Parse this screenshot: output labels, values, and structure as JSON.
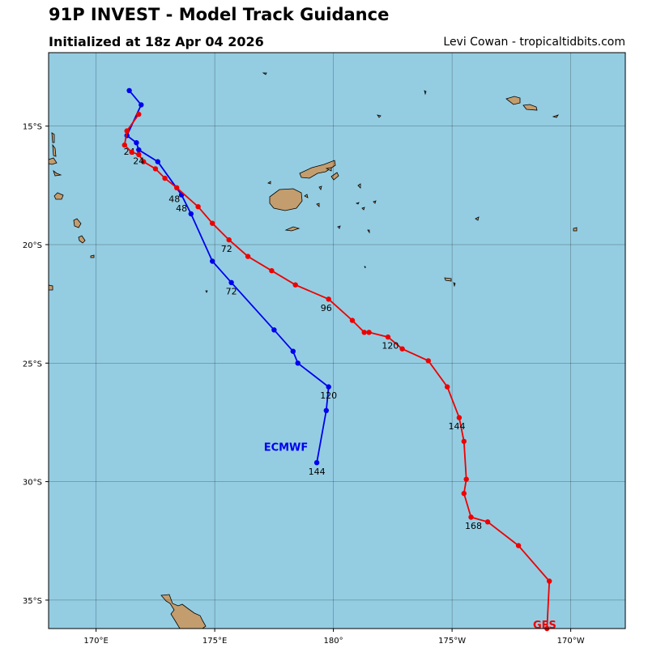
{
  "header": {
    "title": "91P INVEST - Model Track Guidance",
    "subtitle": "Initialized at 18z Apr 04 2026",
    "credit": "Levi Cowan - tropicaltidbits.com"
  },
  "map": {
    "ocean_color": "#94cde2",
    "land_color": "#c49d6e",
    "lon_range": [
      168.0,
      192.3
    ],
    "lat_range": [
      -36.2,
      -11.9
    ],
    "lon_ticks": [
      {
        "value": 170,
        "label": "170°E"
      },
      {
        "value": 175,
        "label": "175°E"
      },
      {
        "value": 180,
        "label": "180°"
      },
      {
        "value": 185,
        "label": "175°W"
      },
      {
        "value": 190,
        "label": "170°W"
      }
    ],
    "lat_ticks": [
      {
        "value": -15,
        "label": "15°S"
      },
      {
        "value": -20,
        "label": "20°S"
      },
      {
        "value": -25,
        "label": "25°S"
      },
      {
        "value": -30,
        "label": "30°S"
      },
      {
        "value": -35,
        "label": "35°S"
      }
    ]
  },
  "chart_data": {
    "type": "line",
    "series": [
      {
        "name": "ECMWF",
        "color": "#0000ee",
        "points": [
          [
            171.4,
            -13.5
          ],
          [
            171.9,
            -14.1
          ],
          [
            171.3,
            -15.4
          ],
          [
            171.7,
            -15.7
          ],
          [
            171.8,
            -16.0
          ],
          [
            172.6,
            -16.5
          ],
          [
            173.6,
            -17.9
          ],
          [
            174.0,
            -18.7
          ],
          [
            174.9,
            -20.7
          ],
          [
            175.7,
            -21.6
          ],
          [
            177.5,
            -23.6
          ],
          [
            178.3,
            -24.5
          ],
          [
            178.5,
            -25.0
          ],
          [
            179.8,
            -26.0
          ],
          [
            179.7,
            -27.0
          ],
          [
            179.3,
            -29.2
          ]
        ],
        "hour_labels": [
          {
            "text": "24",
            "lon": 171.4,
            "lat": -16.2
          },
          {
            "text": "48",
            "lon": 173.6,
            "lat": -18.6
          },
          {
            "text": "72",
            "lon": 175.7,
            "lat": -22.1
          },
          {
            "text": "120",
            "lon": 179.8,
            "lat": -26.5
          },
          {
            "text": "144",
            "lon": 179.3,
            "lat": -29.7
          }
        ],
        "model_label": {
          "text": "ECMWF",
          "lon": 178.0,
          "lat": -28.7
        }
      },
      {
        "name": "GFS",
        "color": "#ee0000",
        "points": [
          [
            171.8,
            -14.5
          ],
          [
            171.3,
            -15.2
          ],
          [
            171.2,
            -15.8
          ],
          [
            171.5,
            -16.1
          ],
          [
            171.8,
            -16.2
          ],
          [
            172.0,
            -16.5
          ],
          [
            172.5,
            -16.8
          ],
          [
            172.9,
            -17.2
          ],
          [
            173.4,
            -17.6
          ],
          [
            174.3,
            -18.4
          ],
          [
            174.9,
            -19.1
          ],
          [
            175.6,
            -19.8
          ],
          [
            176.4,
            -20.5
          ],
          [
            177.4,
            -21.1
          ],
          [
            178.4,
            -21.7
          ],
          [
            179.8,
            -22.3
          ],
          [
            180.8,
            -23.2
          ],
          [
            181.3,
            -23.7
          ],
          [
            181.5,
            -23.7
          ],
          [
            182.3,
            -23.9
          ],
          [
            182.9,
            -24.4
          ],
          [
            184.0,
            -24.9
          ],
          [
            184.8,
            -26.0
          ],
          [
            185.3,
            -27.3
          ],
          [
            185.5,
            -28.3
          ],
          [
            185.6,
            -29.9
          ],
          [
            185.5,
            -30.5
          ],
          [
            185.8,
            -31.5
          ],
          [
            186.5,
            -31.7
          ],
          [
            187.8,
            -32.7
          ],
          [
            189.1,
            -34.2
          ],
          [
            189.0,
            -36.2
          ]
        ],
        "hour_labels": [
          {
            "text": "24",
            "lon": 171.8,
            "lat": -16.6
          },
          {
            "text": "48",
            "lon": 173.3,
            "lat": -18.2
          },
          {
            "text": "72",
            "lon": 175.5,
            "lat": -20.3
          },
          {
            "text": "96",
            "lon": 179.7,
            "lat": -22.8
          },
          {
            "text": "120",
            "lon": 182.4,
            "lat": -24.4
          },
          {
            "text": "144",
            "lon": 185.2,
            "lat": -27.8
          },
          {
            "text": "168",
            "lon": 185.9,
            "lat": -32.0
          }
        ],
        "model_label": {
          "text": "GFS",
          "lon": 188.9,
          "lat": -36.2
        }
      }
    ]
  }
}
